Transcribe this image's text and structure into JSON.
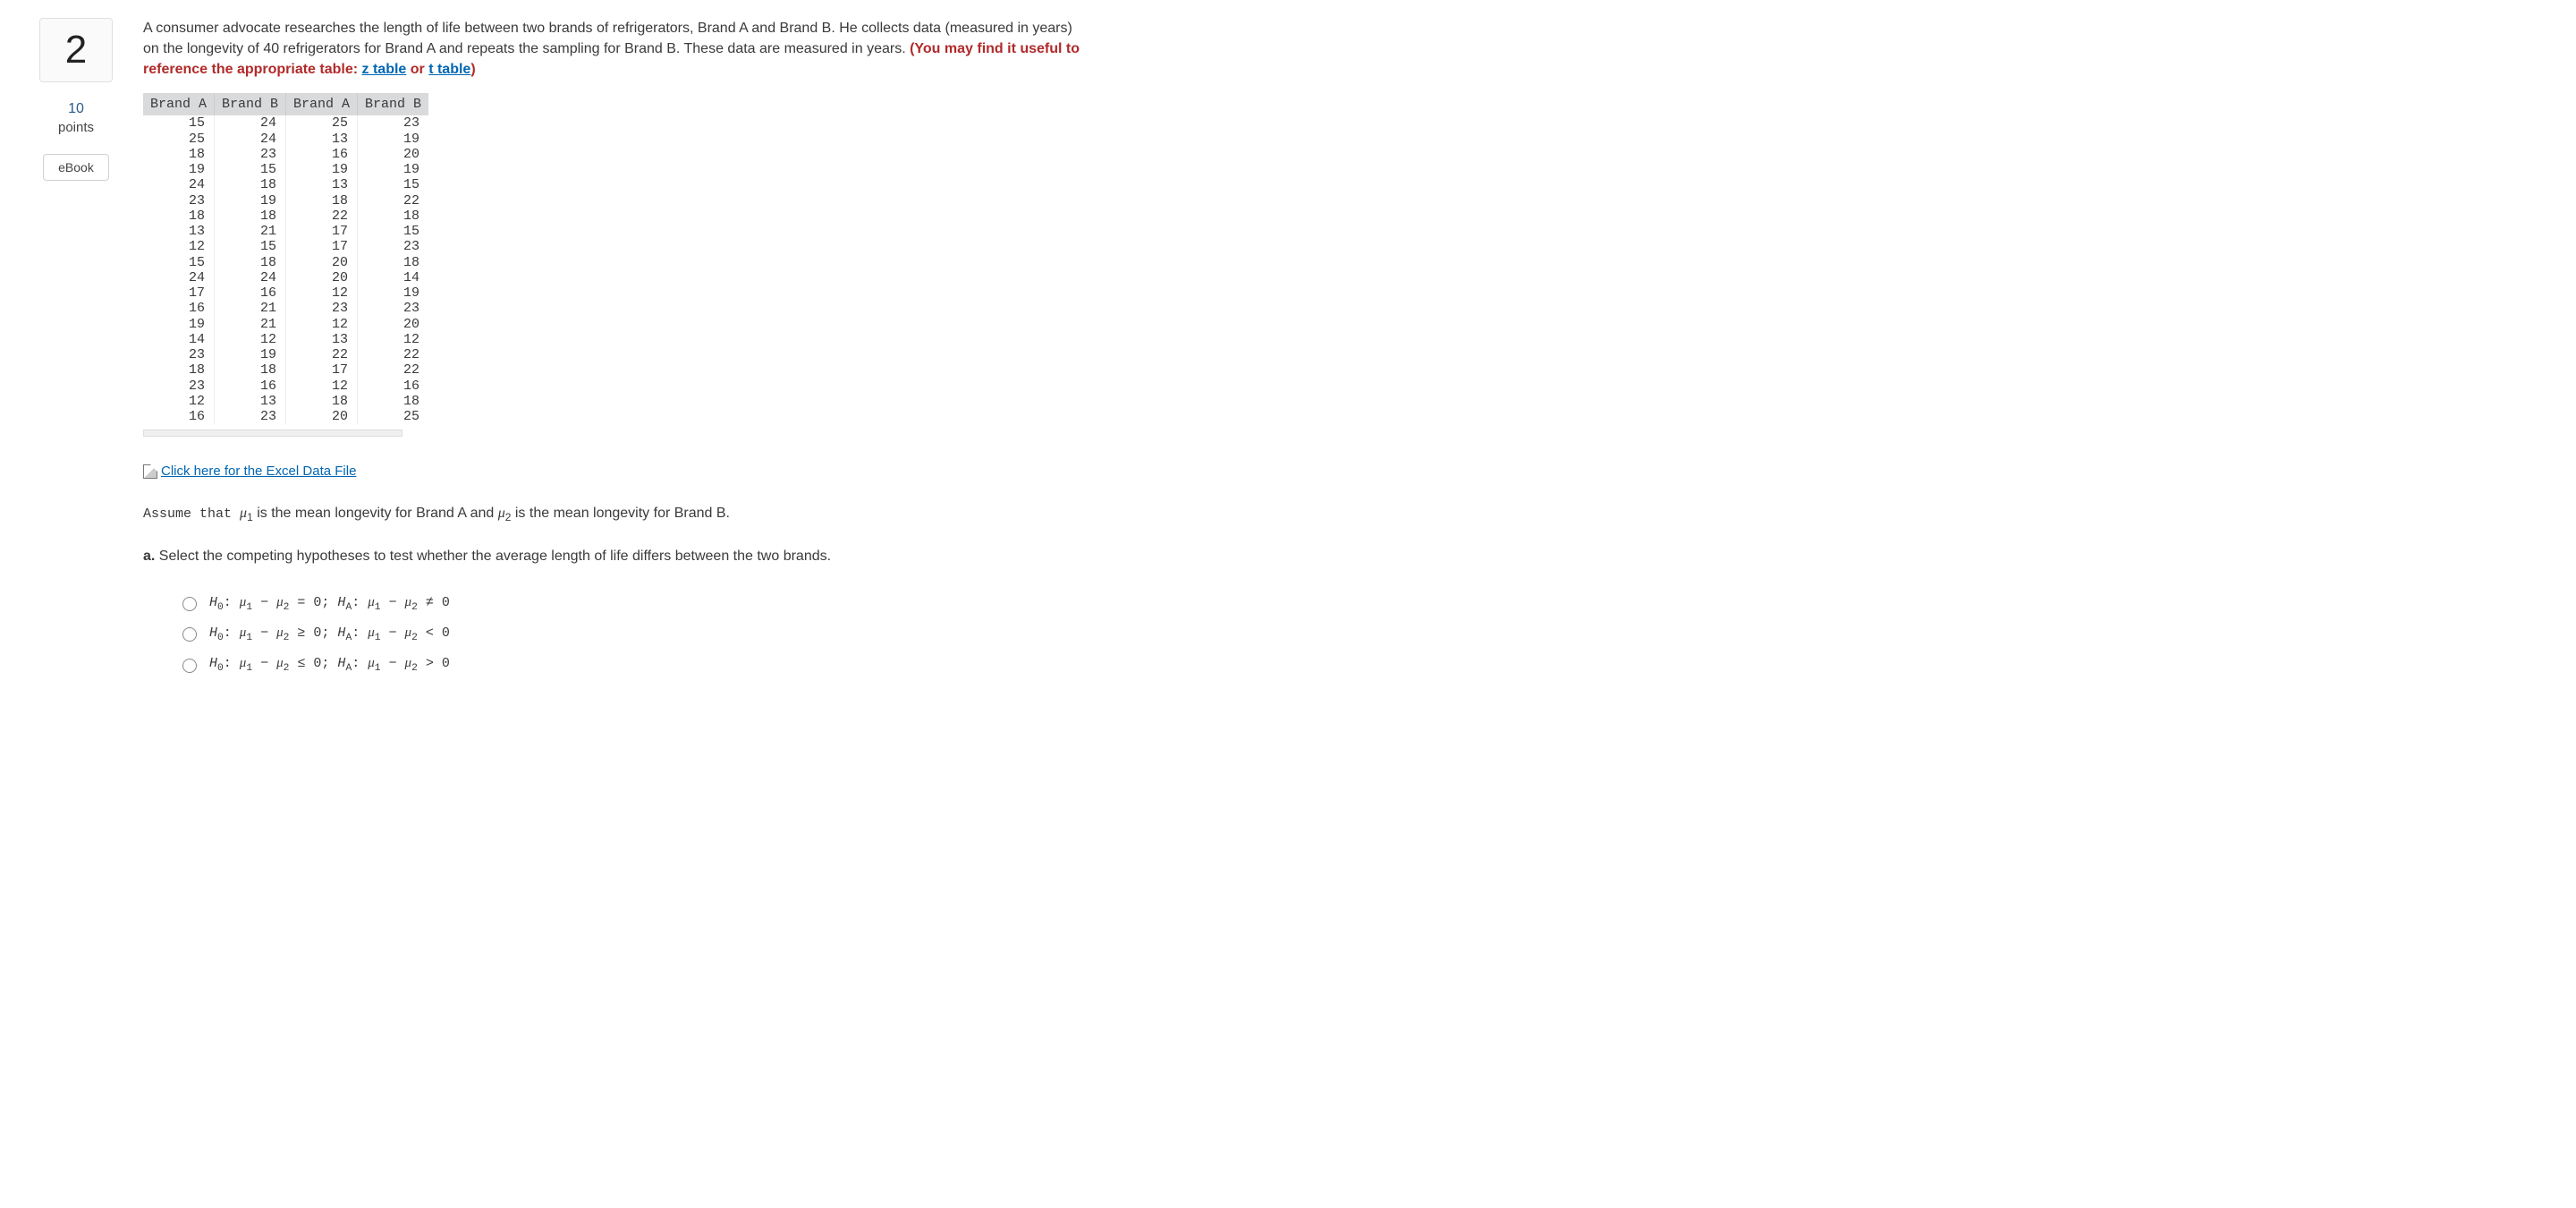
{
  "question_number": "2",
  "points_value": "10",
  "points_label": "points",
  "ebook_label": "eBook",
  "prompt": {
    "text1": "A consumer advocate researches the length of life between two brands of refrigerators, Brand A and Brand B. He collects data (measured in years) on the longevity of 40 refrigerators for Brand A and repeats the sampling for Brand B. These data are measured in years. ",
    "bold_red_prefix": "(You may find it useful to reference the appropriate table: ",
    "z_link": "z table",
    "or_text": " or ",
    "t_link": "t table",
    "bold_red_suffix": ")"
  },
  "data_table": {
    "headers": [
      "Brand A",
      "Brand B",
      "Brand A",
      "Brand B"
    ],
    "rows": [
      [
        15,
        24,
        25,
        23
      ],
      [
        25,
        24,
        13,
        19
      ],
      [
        18,
        23,
        16,
        20
      ],
      [
        19,
        15,
        19,
        19
      ],
      [
        24,
        18,
        13,
        15
      ],
      [
        23,
        19,
        18,
        22
      ],
      [
        18,
        18,
        22,
        18
      ],
      [
        13,
        21,
        17,
        15
      ],
      [
        12,
        15,
        17,
        23
      ],
      [
        15,
        18,
        20,
        18
      ],
      [
        24,
        24,
        20,
        14
      ],
      [
        17,
        16,
        12,
        19
      ],
      [
        16,
        21,
        23,
        23
      ],
      [
        19,
        21,
        12,
        20
      ],
      [
        14,
        12,
        13,
        12
      ],
      [
        23,
        19,
        22,
        22
      ],
      [
        18,
        18,
        17,
        22
      ],
      [
        23,
        16,
        12,
        16
      ],
      [
        12,
        13,
        18,
        18
      ],
      [
        16,
        23,
        20,
        25
      ]
    ]
  },
  "excel_link_text": " Click here for the Excel Data File",
  "assume": {
    "prefix": "Assume that ",
    "mu1": "μ",
    "sub1": "1",
    "mid1": " is the mean longevity for Brand A and ",
    "mu2": "μ",
    "sub2": "2",
    "mid2": " is the mean longevity for Brand B."
  },
  "part_a": {
    "label": "a.",
    "text": " Select the competing hypotheses to test whether the average length of life differs between the two brands."
  },
  "options": {
    "h0_label": "H",
    "ha_label": "H",
    "opt1": {
      "h0sub": "0",
      "rel0": " = 0; ",
      "hasub": "A",
      "rela": " ≠ 0"
    },
    "opt2": {
      "h0sub": "0",
      "rel0": " ≥ 0; ",
      "hasub": "A",
      "rela": " < 0"
    },
    "opt3": {
      "h0sub": "0",
      "rel0": " ≤ 0; ",
      "hasub": "A",
      "rela": " > 0"
    }
  },
  "style": {
    "link_color": "#0066b3",
    "red_color": "#b12a2a",
    "table_header_bg": "#d9dadb"
  }
}
